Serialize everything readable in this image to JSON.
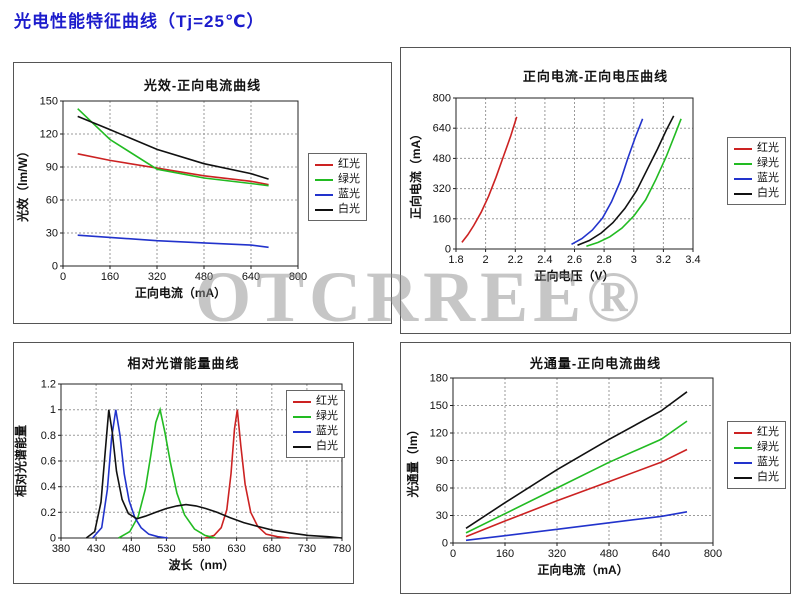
{
  "page_title": "光电性能特征曲线（Tj=25℃）",
  "watermark": "OTCRREE®",
  "colors": {
    "red": "#cc2222",
    "green": "#22bb22",
    "blue": "#2233cc",
    "black": "#111111"
  },
  "chart_data": [
    {
      "type": "line",
      "title": "光效-正向电流曲线",
      "xlabel": "正向电流（mA）",
      "ylabel": "光效（lm/W）",
      "xlim": [
        0,
        800
      ],
      "ylim": [
        0,
        150
      ],
      "xticks": [
        0,
        160,
        320,
        480,
        640,
        800
      ],
      "xtick_labels": [
        "0",
        "160",
        "320",
        "480",
        "640",
        "800"
      ],
      "yticks": [
        0,
        30,
        60,
        90,
        120,
        150
      ],
      "ytick_labels": [
        "0",
        "30",
        "60",
        "90",
        "120",
        "150"
      ],
      "grid": true,
      "legend_position": "right-outside",
      "series": [
        {
          "name": "红光",
          "color": "red",
          "x": [
            50,
            160,
            320,
            480,
            640,
            700
          ],
          "y": [
            102,
            96,
            89,
            82,
            77,
            74
          ]
        },
        {
          "name": "绿光",
          "color": "green",
          "x": [
            50,
            160,
            320,
            480,
            640,
            700
          ],
          "y": [
            143,
            115,
            88,
            80,
            75,
            73
          ]
        },
        {
          "name": "蓝光",
          "color": "blue",
          "x": [
            50,
            160,
            320,
            480,
            640,
            700
          ],
          "y": [
            28,
            26,
            23,
            21,
            19,
            17
          ]
        },
        {
          "name": "白光",
          "color": "black",
          "x": [
            50,
            160,
            320,
            480,
            640,
            700
          ],
          "y": [
            136,
            124,
            106,
            93,
            84,
            79
          ]
        }
      ]
    },
    {
      "type": "line",
      "title": "正向电流-正向电压曲线",
      "xlabel": "正向电压（V）",
      "ylabel": "正向电流（mA）",
      "xlim": [
        1.8,
        3.4
      ],
      "ylim": [
        0,
        800
      ],
      "xticks": [
        1.8,
        2,
        2.2,
        2.4,
        2.6,
        2.8,
        3,
        3.2,
        3.4
      ],
      "xtick_labels": [
        "1.8",
        "2",
        "2.2",
        "2.4",
        "2.6",
        "2.8",
        "3",
        "3.2",
        "3.4"
      ],
      "yticks": [
        0,
        160,
        320,
        480,
        640,
        800
      ],
      "ytick_labels": [
        "0",
        "160",
        "320",
        "480",
        "640",
        "800"
      ],
      "grid": true,
      "legend_position": "right-outside",
      "series": [
        {
          "name": "红光",
          "color": "red",
          "x": [
            1.84,
            1.88,
            1.92,
            1.97,
            2.02,
            2.07,
            2.12,
            2.17,
            2.21
          ],
          "y": [
            35,
            75,
            125,
            195,
            280,
            380,
            490,
            600,
            700
          ]
        },
        {
          "name": "绿光",
          "color": "green",
          "x": [
            2.68,
            2.76,
            2.84,
            2.92,
            3.0,
            3.08,
            3.15,
            3.22,
            3.28,
            3.32
          ],
          "y": [
            15,
            35,
            65,
            110,
            175,
            260,
            370,
            490,
            610,
            690
          ]
        },
        {
          "name": "蓝光",
          "color": "blue",
          "x": [
            2.58,
            2.65,
            2.72,
            2.79,
            2.85,
            2.91,
            2.96,
            3.01,
            3.06
          ],
          "y": [
            25,
            55,
            100,
            165,
            250,
            360,
            480,
            590,
            690
          ]
        },
        {
          "name": "白光",
          "color": "black",
          "x": [
            2.62,
            2.7,
            2.78,
            2.86,
            2.94,
            3.02,
            3.09,
            3.16,
            3.22,
            3.27
          ],
          "y": [
            20,
            45,
            85,
            140,
            215,
            310,
            420,
            530,
            630,
            705
          ]
        }
      ]
    },
    {
      "type": "line",
      "title": "相对光谱能量曲线",
      "xlabel": "波长（nm）",
      "ylabel": "相对光谱能量",
      "xlim": [
        380,
        780
      ],
      "ylim": [
        0,
        1.2
      ],
      "xticks": [
        380,
        430,
        480,
        530,
        580,
        630,
        680,
        730,
        780
      ],
      "xtick_labels": [
        "380",
        "430",
        "480",
        "530",
        "580",
        "630",
        "680",
        "730",
        "780"
      ],
      "yticks": [
        0,
        0.2,
        0.4,
        0.6,
        0.8,
        1,
        1.2
      ],
      "ytick_labels": [
        "0",
        "0.2",
        "0.4",
        "0.6",
        "0.8",
        "1",
        "1.2"
      ],
      "grid": true,
      "legend_position": "inside-top-right",
      "series": [
        {
          "name": "红光",
          "color": "red",
          "x": [
            585,
            598,
            608,
            616,
            622,
            627,
            631,
            636,
            642,
            650,
            660,
            672,
            688,
            705
          ],
          "y": [
            0,
            0.02,
            0.08,
            0.22,
            0.5,
            0.85,
            1.0,
            0.72,
            0.42,
            0.2,
            0.09,
            0.03,
            0.01,
            0
          ]
        },
        {
          "name": "绿光",
          "color": "green",
          "x": [
            462,
            478,
            490,
            500,
            508,
            515,
            521,
            528,
            536,
            545,
            556,
            570,
            585,
            600
          ],
          "y": [
            0,
            0.05,
            0.17,
            0.38,
            0.65,
            0.9,
            1.0,
            0.82,
            0.58,
            0.35,
            0.18,
            0.07,
            0.02,
            0
          ]
        },
        {
          "name": "蓝光",
          "color": "blue",
          "x": [
            425,
            438,
            446,
            452,
            458,
            464,
            470,
            477,
            485,
            494,
            505,
            518,
            532
          ],
          "y": [
            0,
            0.08,
            0.38,
            0.78,
            1.0,
            0.8,
            0.5,
            0.29,
            0.16,
            0.08,
            0.03,
            0.01,
            0
          ]
        },
        {
          "name": "白光",
          "color": "black",
          "x": [
            416,
            428,
            437,
            443,
            448,
            453,
            459,
            467,
            476,
            488,
            500,
            515,
            530,
            545,
            558,
            572,
            586,
            602,
            620,
            640,
            660,
            682,
            706,
            732,
            760,
            780
          ],
          "y": [
            0,
            0.05,
            0.28,
            0.68,
            1.0,
            0.82,
            0.52,
            0.3,
            0.19,
            0.15,
            0.17,
            0.2,
            0.23,
            0.25,
            0.26,
            0.25,
            0.23,
            0.2,
            0.16,
            0.12,
            0.09,
            0.06,
            0.04,
            0.02,
            0.01,
            0
          ]
        }
      ]
    },
    {
      "type": "line",
      "title": "光通量-正向电流曲线",
      "xlabel": "正向电流（mA）",
      "ylabel": "光通量（lm）",
      "xlim": [
        0,
        800
      ],
      "ylim": [
        0,
        180
      ],
      "xticks": [
        0,
        160,
        320,
        480,
        640,
        800
      ],
      "xtick_labels": [
        "0",
        "160",
        "320",
        "480",
        "640",
        "800"
      ],
      "yticks": [
        0,
        30,
        60,
        90,
        120,
        150,
        180
      ],
      "ytick_labels": [
        "0",
        "30",
        "60",
        "90",
        "120",
        "150",
        "180"
      ],
      "grid": true,
      "legend_position": "right-outside",
      "series": [
        {
          "name": "红光",
          "color": "red",
          "x": [
            40,
            160,
            320,
            480,
            640,
            720
          ],
          "y": [
            7,
            24,
            46,
            67,
            88,
            102
          ]
        },
        {
          "name": "绿光",
          "color": "green",
          "x": [
            40,
            160,
            320,
            480,
            640,
            720
          ],
          "y": [
            11,
            32,
            60,
            88,
            113,
            133
          ]
        },
        {
          "name": "蓝光",
          "color": "blue",
          "x": [
            40,
            160,
            320,
            480,
            640,
            720
          ],
          "y": [
            3,
            8,
            15,
            22,
            29,
            34
          ]
        },
        {
          "name": "白光",
          "color": "black",
          "x": [
            40,
            160,
            320,
            480,
            640,
            720
          ],
          "y": [
            16,
            44,
            80,
            113,
            144,
            165
          ]
        }
      ]
    }
  ]
}
